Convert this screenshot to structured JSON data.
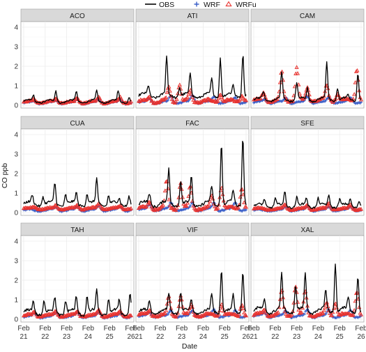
{
  "chart_data": {
    "type": "line",
    "xlabel": "Date",
    "ylabel": "CO ppb",
    "ylim": [
      0,
      4
    ],
    "yticks": [
      0,
      1,
      2,
      3,
      4
    ],
    "xlim": [
      0,
      5
    ],
    "xticks": [
      {
        "x": 0,
        "line1": "Feb",
        "line2": "21"
      },
      {
        "x": 1,
        "line1": "Feb",
        "line2": "22"
      },
      {
        "x": 2,
        "line1": "Feb",
        "line2": "23"
      },
      {
        "x": 3,
        "line1": "Feb",
        "line2": "24"
      },
      {
        "x": 4,
        "line1": "Feb",
        "line2": "25"
      },
      {
        "x": 5,
        "line1": "Feb",
        "line2": "26"
      }
    ],
    "legend": {
      "placement": "top",
      "entries": [
        {
          "name": "OBS",
          "style": "line",
          "color": "#000000"
        },
        {
          "name": "WRF",
          "style": "plus",
          "color": "#3a5fc8"
        },
        {
          "name": "WRFu",
          "style": "triangle",
          "color": "#e8322e"
        }
      ]
    },
    "panels": [
      {
        "name": "ACO",
        "obs": {
          "base": 0.2,
          "amp": 0.08,
          "peaks": [
            [
              0.45,
              0.5
            ],
            [
              1.5,
              0.75
            ],
            [
              2.45,
              0.7
            ],
            [
              3.4,
              0.7
            ],
            [
              4.4,
              0.7
            ],
            [
              4.9,
              0.45
            ]
          ]
        },
        "wrf": {
          "base": 0.12,
          "amp": 0.05,
          "peaks": [
            [
              0.5,
              0.2
            ],
            [
              1.5,
              0.25
            ],
            [
              2.5,
              0.3
            ],
            [
              3.5,
              0.3
            ],
            [
              4.5,
              0.3
            ]
          ]
        },
        "wrfu": {
          "base": 0.15,
          "amp": 0.06,
          "peaks": [
            [
              0.5,
              0.3
            ],
            [
              1.5,
              0.35
            ],
            [
              2.5,
              0.35
            ],
            [
              3.5,
              0.4
            ],
            [
              4.5,
              0.4
            ]
          ]
        }
      },
      {
        "name": "ATI",
        "obs": {
          "base": 0.5,
          "amp": 0.12,
          "peaks": [
            [
              0.45,
              1.0
            ],
            [
              1.3,
              2.4
            ],
            [
              1.9,
              1.0
            ],
            [
              2.4,
              1.6
            ],
            [
              3.4,
              1.3
            ],
            [
              3.8,
              2.5
            ],
            [
              4.4,
              1.0
            ],
            [
              4.85,
              2.7
            ]
          ]
        },
        "wrf": {
          "base": 0.15,
          "amp": 0.06,
          "peaks": [
            [
              0.5,
              0.35
            ],
            [
              1.5,
              0.45
            ],
            [
              2.5,
              0.5
            ],
            [
              3.5,
              0.45
            ],
            [
              4.5,
              0.4
            ]
          ]
        },
        "wrfu": {
          "base": 0.2,
          "amp": 0.08,
          "peaks": [
            [
              0.5,
              0.4
            ],
            [
              1.4,
              0.9
            ],
            [
              1.9,
              1.1
            ],
            [
              2.4,
              0.7
            ],
            [
              3.8,
              0.6
            ],
            [
              4.8,
              0.55
            ]
          ]
        }
      },
      {
        "name": "CAM",
        "obs": {
          "base": 0.3,
          "amp": 0.1,
          "peaks": [
            [
              0.45,
              0.7
            ],
            [
              1.3,
              1.6
            ],
            [
              2.0,
              1.2
            ],
            [
              2.5,
              0.9
            ],
            [
              3.4,
              2.2
            ],
            [
              3.9,
              0.9
            ],
            [
              4.4,
              0.5
            ],
            [
              4.85,
              1.7
            ]
          ]
        },
        "wrf": {
          "base": 0.15,
          "amp": 0.05,
          "peaks": [
            [
              0.5,
              0.3
            ],
            [
              1.5,
              0.4
            ],
            [
              2.5,
              0.45
            ],
            [
              3.5,
              0.4
            ],
            [
              4.5,
              0.4
            ]
          ]
        },
        "wrfu": {
          "base": 0.25,
          "amp": 0.08,
          "peaks": [
            [
              0.45,
              0.6
            ],
            [
              1.3,
              1.7
            ],
            [
              2.0,
              1.9
            ],
            [
              2.5,
              0.9
            ],
            [
              3.4,
              1.0
            ],
            [
              3.9,
              0.6
            ],
            [
              4.8,
              1.9
            ]
          ]
        }
      },
      {
        "name": "CUA",
        "obs": {
          "base": 0.45,
          "amp": 0.12,
          "peaks": [
            [
              0.4,
              0.85
            ],
            [
              0.9,
              0.9
            ],
            [
              1.45,
              1.5
            ],
            [
              1.95,
              0.95
            ],
            [
              2.45,
              1.0
            ],
            [
              2.95,
              1.0
            ],
            [
              3.4,
              1.7
            ],
            [
              3.95,
              0.9
            ],
            [
              4.45,
              0.7
            ],
            [
              4.9,
              0.9
            ]
          ]
        },
        "wrf": {
          "base": 0.12,
          "amp": 0.05,
          "peaks": [
            [
              1.5,
              0.3
            ],
            [
              2.5,
              0.3
            ],
            [
              3.5,
              0.35
            ],
            [
              4.5,
              0.3
            ]
          ]
        },
        "wrfu": {
          "base": 0.2,
          "amp": 0.05,
          "peaks": [
            [
              0.5,
              0.3
            ],
            [
              1.5,
              0.35
            ],
            [
              2.5,
              0.35
            ],
            [
              3.5,
              0.45
            ],
            [
              4.5,
              0.35
            ]
          ]
        }
      },
      {
        "name": "FAC",
        "obs": {
          "base": 0.45,
          "amp": 0.15,
          "peaks": [
            [
              0.5,
              1.0
            ],
            [
              1.4,
              2.2
            ],
            [
              1.95,
              1.7
            ],
            [
              2.45,
              1.8
            ],
            [
              3.4,
              1.3
            ],
            [
              3.85,
              3.6
            ],
            [
              4.4,
              1.1
            ],
            [
              4.85,
              4.0
            ]
          ]
        },
        "wrf": {
          "base": 0.15,
          "amp": 0.06,
          "peaks": [
            [
              0.5,
              0.4
            ],
            [
              1.5,
              0.5
            ],
            [
              2.5,
              0.5
            ],
            [
              3.5,
              0.5
            ],
            [
              4.5,
              0.5
            ]
          ]
        },
        "wrfu": {
          "base": 0.22,
          "amp": 0.08,
          "peaks": [
            [
              0.5,
              0.5
            ],
            [
              1.3,
              1.6
            ],
            [
              1.95,
              1.5
            ],
            [
              2.4,
              1.3
            ],
            [
              3.4,
              0.8
            ],
            [
              3.85,
              1.3
            ],
            [
              4.8,
              1.3
            ]
          ]
        }
      },
      {
        "name": "SFE",
        "obs": {
          "base": 0.35,
          "amp": 0.1,
          "peaks": [
            [
              0.5,
              0.7
            ],
            [
              1.0,
              0.75
            ],
            [
              1.45,
              1.05
            ],
            [
              2.0,
              0.8
            ],
            [
              2.45,
              0.75
            ],
            [
              3.0,
              0.75
            ],
            [
              3.5,
              0.9
            ],
            [
              4.0,
              0.7
            ],
            [
              4.5,
              0.7
            ],
            [
              4.9,
              0.65
            ]
          ]
        },
        "wrf": {
          "base": 0.12,
          "amp": 0.04,
          "peaks": [
            [
              1.5,
              0.3
            ],
            [
              2.5,
              0.3
            ],
            [
              3.5,
              0.3
            ],
            [
              4.5,
              0.3
            ]
          ]
        },
        "wrfu": {
          "base": 0.18,
          "amp": 0.05,
          "peaks": [
            [
              1.45,
              0.4
            ],
            [
              2.5,
              0.35
            ],
            [
              3.5,
              0.45
            ],
            [
              4.5,
              0.4
            ]
          ]
        }
      },
      {
        "name": "TAH",
        "obs": {
          "base": 0.35,
          "amp": 0.15,
          "peaks": [
            [
              0.45,
              0.9
            ],
            [
              0.95,
              1.0
            ],
            [
              1.45,
              1.1
            ],
            [
              1.95,
              1.0
            ],
            [
              2.45,
              1.1
            ],
            [
              2.95,
              1.2
            ],
            [
              3.4,
              1.4
            ],
            [
              3.95,
              1.0
            ],
            [
              4.45,
              1.0
            ],
            [
              4.95,
              1.3
            ]
          ]
        },
        "wrf": {
          "base": 0.12,
          "amp": 0.05,
          "peaks": [
            [
              0.5,
              0.3
            ],
            [
              1.5,
              0.35
            ],
            [
              2.5,
              0.35
            ],
            [
              3.5,
              0.35
            ],
            [
              4.5,
              0.3
            ]
          ]
        },
        "wrfu": {
          "base": 0.18,
          "amp": 0.06,
          "peaks": [
            [
              0.5,
              0.35
            ],
            [
              1.5,
              0.4
            ],
            [
              2.5,
              0.4
            ],
            [
              3.5,
              0.45
            ],
            [
              4.5,
              0.4
            ]
          ]
        }
      },
      {
        "name": "VIF",
        "obs": {
          "base": 0.4,
          "amp": 0.12,
          "peaks": [
            [
              0.5,
              1.0
            ],
            [
              1.4,
              1.3
            ],
            [
              1.95,
              1.4
            ],
            [
              2.45,
              1.0
            ],
            [
              3.4,
              1.3
            ],
            [
              3.85,
              2.6
            ],
            [
              4.4,
              1.2
            ],
            [
              4.85,
              2.5
            ]
          ]
        },
        "wrf": {
          "base": 0.15,
          "amp": 0.05,
          "peaks": [
            [
              0.5,
              0.35
            ],
            [
              1.5,
              0.45
            ],
            [
              2.5,
              0.45
            ],
            [
              3.5,
              0.5
            ],
            [
              4.5,
              0.45
            ]
          ]
        },
        "wrfu": {
          "base": 0.2,
          "amp": 0.08,
          "peaks": [
            [
              0.5,
              0.45
            ],
            [
              1.4,
              1.1
            ],
            [
              1.95,
              1.2
            ],
            [
              2.45,
              0.7
            ],
            [
              3.85,
              0.8
            ],
            [
              4.8,
              0.8
            ]
          ]
        }
      },
      {
        "name": "XAL",
        "obs": {
          "base": 0.45,
          "amp": 0.15,
          "peaks": [
            [
              0.5,
              1.0
            ],
            [
              1.3,
              2.2
            ],
            [
              1.95,
              1.8
            ],
            [
              2.4,
              2.3
            ],
            [
              3.35,
              1.4
            ],
            [
              3.8,
              3.0
            ],
            [
              4.4,
              1.1
            ],
            [
              4.85,
              2.3
            ]
          ]
        },
        "wrf": {
          "base": 0.15,
          "amp": 0.06,
          "peaks": [
            [
              0.5,
              0.35
            ],
            [
              1.5,
              0.45
            ],
            [
              2.5,
              0.5
            ],
            [
              3.5,
              0.5
            ],
            [
              4.5,
              0.45
            ]
          ]
        },
        "wrfu": {
          "base": 0.22,
          "amp": 0.08,
          "peaks": [
            [
              0.5,
              0.5
            ],
            [
              1.3,
              1.4
            ],
            [
              1.95,
              1.7
            ],
            [
              2.4,
              1.4
            ],
            [
              3.4,
              0.8
            ],
            [
              3.8,
              0.9
            ],
            [
              4.8,
              1.5
            ]
          ]
        }
      }
    ]
  }
}
